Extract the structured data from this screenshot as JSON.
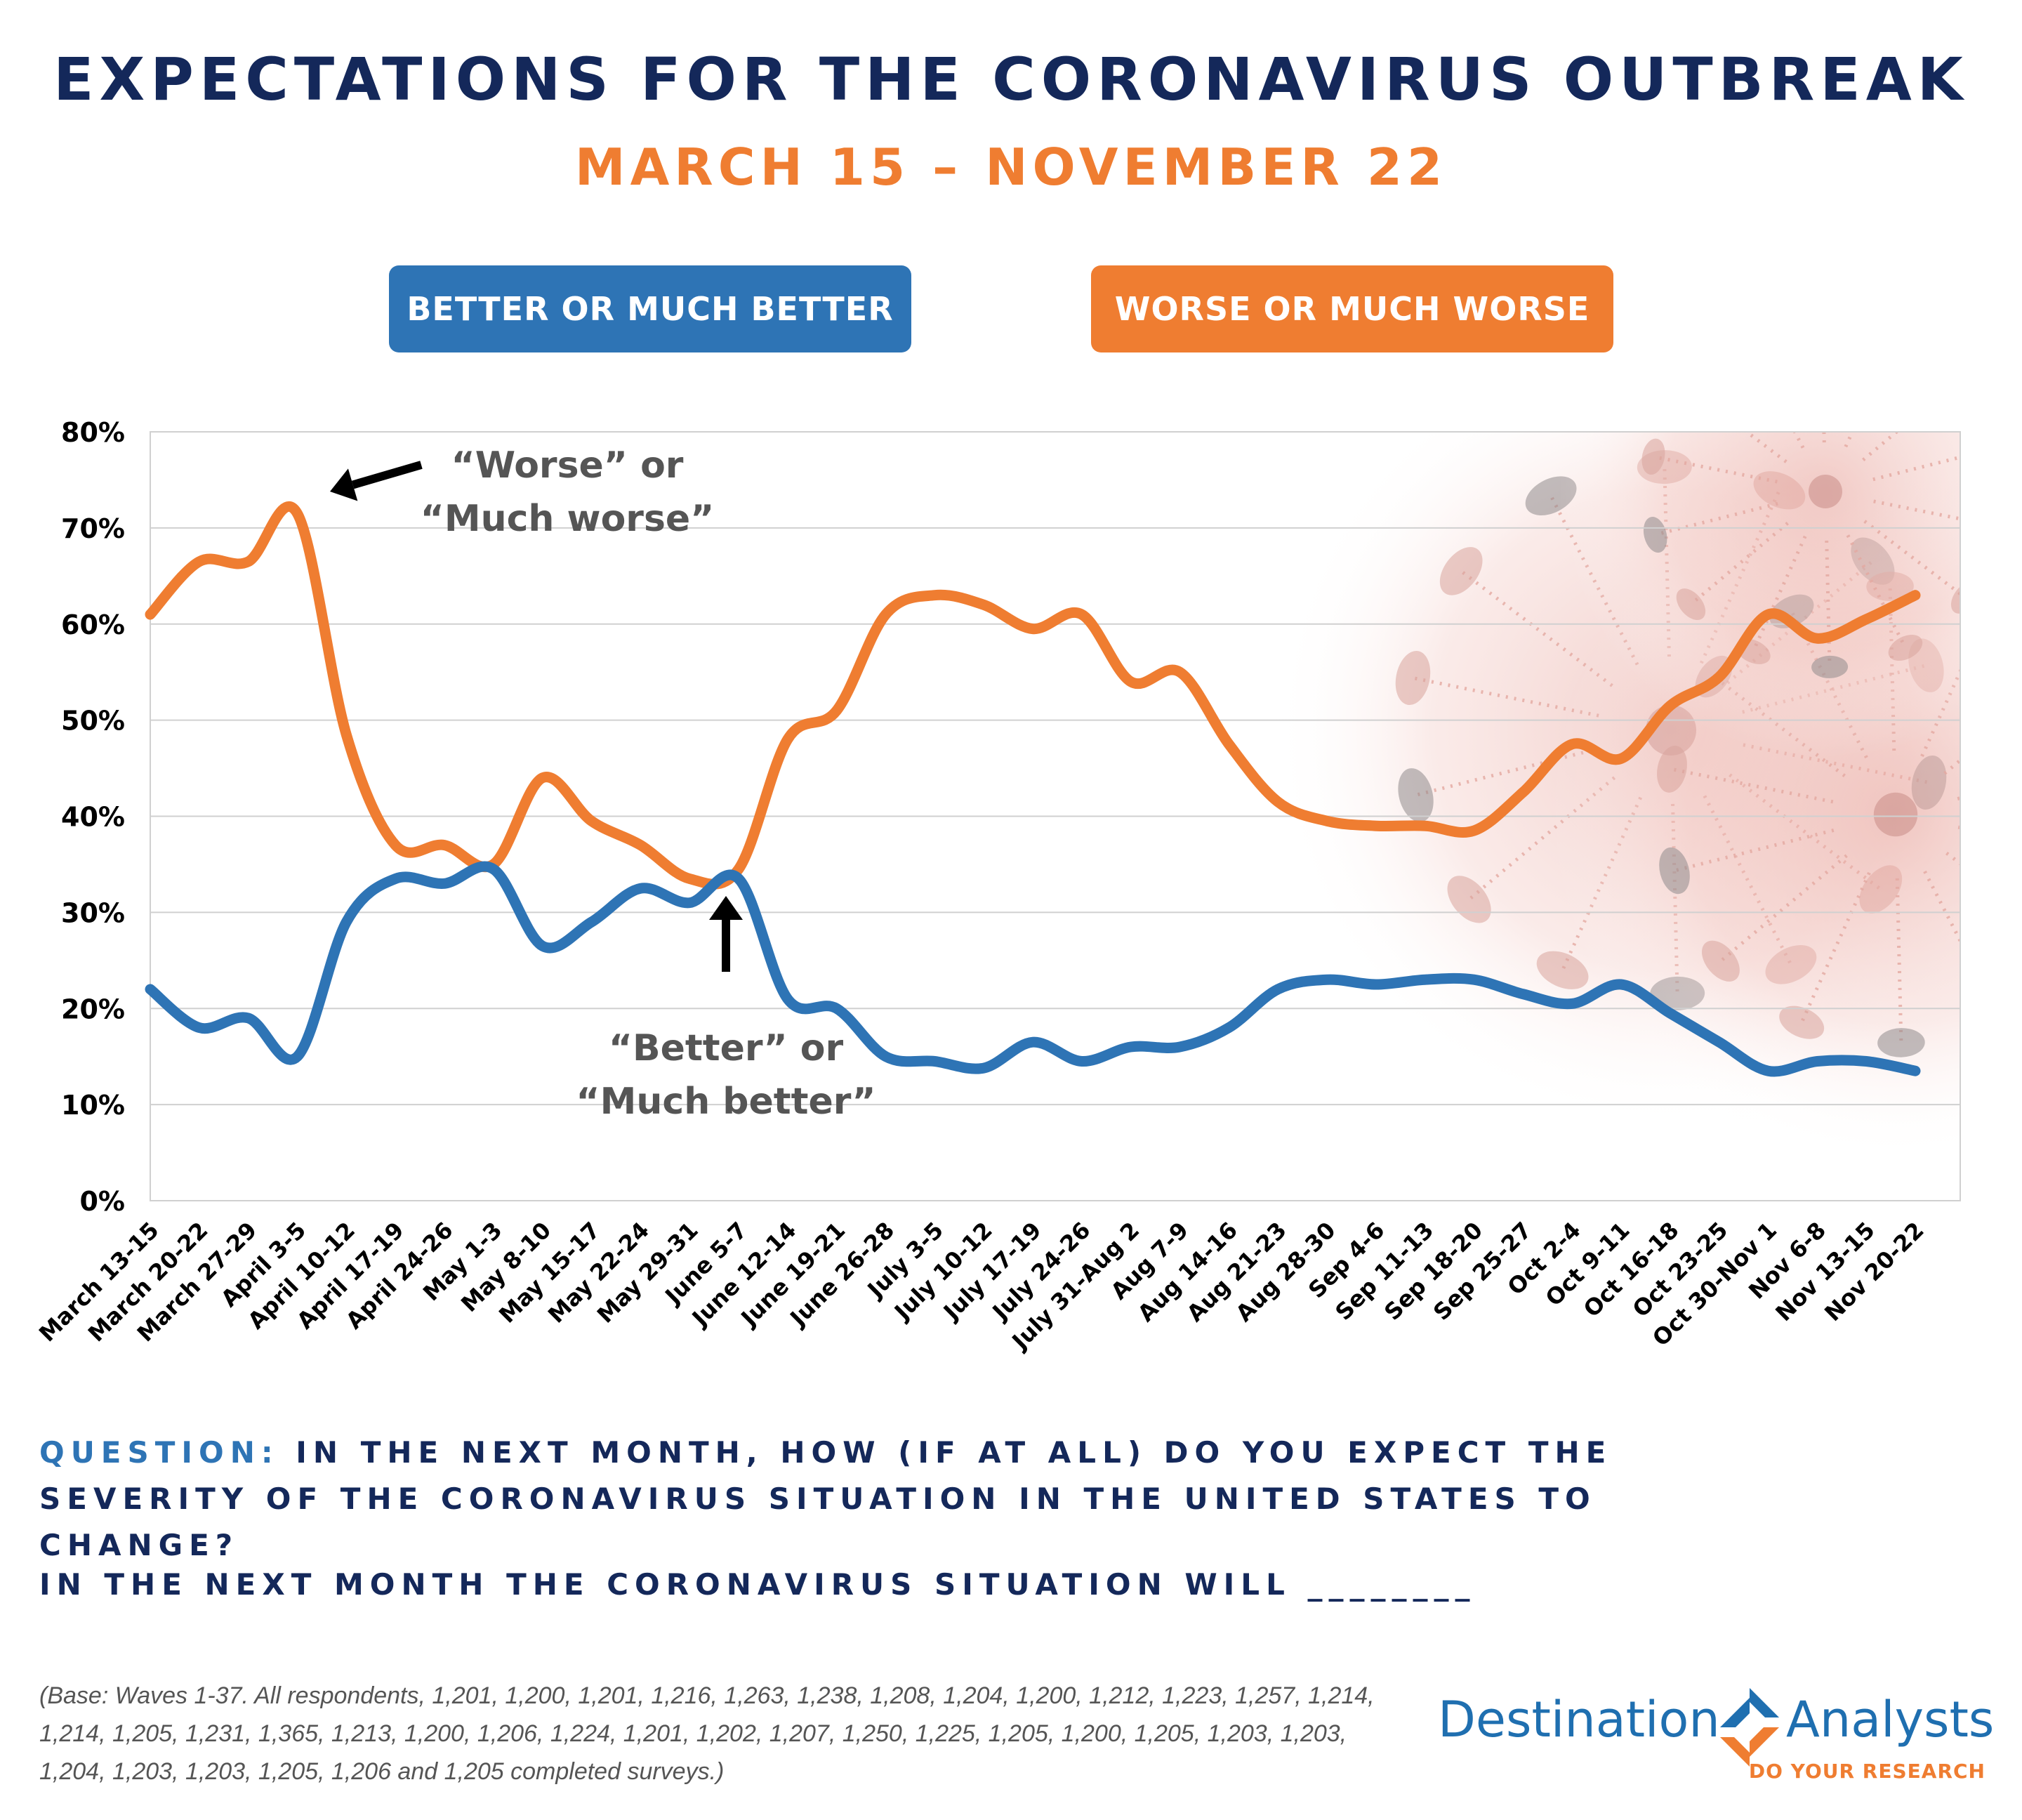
{
  "header": {
    "title": "EXPECTATIONS FOR THE CORONAVIRUS OUTBREAK",
    "subtitle": "MARCH 15 – NOVEMBER 22"
  },
  "legend": {
    "better_label": "BETTER OR MUCH BETTER",
    "worse_label": "WORSE OR MUCH WORSE"
  },
  "colors": {
    "title": "#14285a",
    "orange": "#ef7d31",
    "blue": "#2e74b5",
    "annotation": "#555555"
  },
  "chart_data": {
    "type": "line",
    "ylim": [
      0,
      80
    ],
    "yticks": [
      0,
      10,
      20,
      30,
      40,
      50,
      60,
      70,
      80
    ],
    "ytick_suffix": "%",
    "grid": true,
    "categories": [
      "March 13-15",
      "March 20-22",
      "March 27-29",
      "April 3-5",
      "April 10-12",
      "April 17-19",
      "April 24-26",
      "May 1-3",
      "May 8-10",
      "May 15-17",
      "May 22-24",
      "May 29-31",
      "June 5-7",
      "June 12-14",
      "June 19-21",
      "June 26-28",
      "July 3-5",
      "July 10-12",
      "July 17-19",
      "July 24-26",
      "July 31-Aug 2",
      "Aug 7-9",
      "Aug 14-16",
      "Aug 21-23",
      "Aug 28-30",
      "Sep 4-6",
      "Sep 11-13",
      "Sep 18-20",
      "Sep 25-27",
      "Oct 2-4",
      "Oct 9-11",
      "Oct 16-18",
      "Oct 23-25",
      "Oct 30-Nov 1",
      "Nov 6-8",
      "Nov 13-15",
      "Nov 20-22"
    ],
    "series": [
      {
        "key": "worse",
        "color": "#ef7d31",
        "values": [
          61.0,
          66.5,
          66.5,
          71.5,
          48.5,
          37.0,
          37.0,
          35.0,
          44.0,
          39.5,
          37.0,
          33.5,
          34.5,
          48.0,
          51.0,
          61.0,
          63.0,
          62.0,
          59.5,
          61.0,
          54.0,
          55.0,
          47.5,
          41.5,
          39.5,
          39.0,
          39.0,
          38.5,
          42.5,
          47.5,
          46.0,
          51.5,
          54.5,
          61.0,
          58.5,
          60.5,
          63.0
        ]
      },
      {
        "key": "better",
        "color": "#2e74b5",
        "values": [
          22.0,
          18.0,
          19.0,
          15.0,
          29.0,
          33.5,
          33.0,
          34.5,
          26.5,
          29.0,
          32.5,
          31.0,
          33.5,
          21.0,
          20.0,
          15.0,
          14.5,
          13.8,
          16.5,
          14.5,
          16.0,
          16.0,
          18.0,
          22.0,
          23.0,
          22.5,
          23.0,
          23.0,
          21.5,
          20.5,
          22.5,
          19.5,
          16.5,
          13.5,
          14.5,
          14.5,
          13.5
        ]
      }
    ],
    "annotations": [
      {
        "lines": [
          "“Worse” or",
          "“Much worse”"
        ]
      },
      {
        "lines": [
          "“Better” or",
          "“Much better”"
        ]
      }
    ]
  },
  "footer": {
    "question_label": "QUESTION:",
    "question_text": " IN THE NEXT MONTH, HOW (IF AT ALL) DO YOU EXPECT THE SEVERITY OF THE CORONAVIRUS SITUATION IN THE UNITED STATES TO CHANGE?",
    "statement": "IN THE NEXT MONTH THE CORONAVIRUS SITUATION WILL ________",
    "base_note": "(Base: Waves 1-37. All respondents, 1,201, 1,200, 1,201, 1,216, 1,263, 1,238, 1,208, 1,204, 1,200, 1,212, 1,223, 1,257, 1,214, 1,214, 1,205, 1,231, 1,365, 1,213, 1,200, 1,206, 1,224, 1,201, 1,202, 1,207, 1,250, 1,225, 1,205, 1,200, 1,205, 1,203, 1,203, 1,204, 1,203, 1,203, 1,205, 1,206 and 1,205 completed surveys.)"
  },
  "logo": {
    "left": "Destination",
    "right": "Analysts",
    "tagline": "DO YOUR RESEARCH"
  }
}
